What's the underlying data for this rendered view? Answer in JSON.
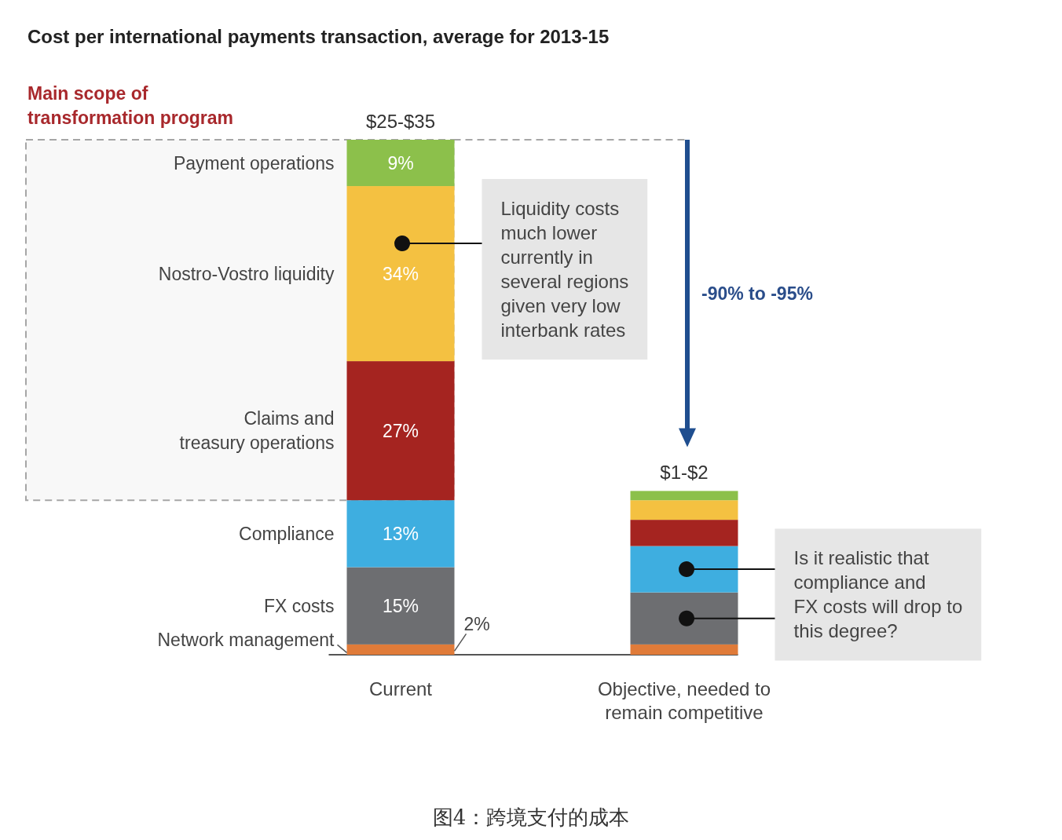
{
  "chart_data": {
    "type": "bar",
    "stacked": true,
    "title": "Cost per international payments transaction, average for 2013-15",
    "categories": [
      "Current",
      "Objective, needed to\nremain competitive"
    ],
    "series": [
      {
        "name": "Network management",
        "color": "#e07b39",
        "values": [
          2,
          2
        ],
        "value_labels": [
          "2%",
          null
        ]
      },
      {
        "name": "FX costs",
        "color": "#6d6e71",
        "values": [
          15,
          10.1
        ],
        "value_labels": [
          "15%",
          null
        ]
      },
      {
        "name": "Compliance",
        "color": "#3eaee0",
        "values": [
          13,
          9
        ],
        "value_labels": [
          "13%",
          null
        ]
      },
      {
        "name": "Claims and\ntreasury operations",
        "color": "#a52420",
        "values": [
          27,
          5.1
        ],
        "value_labels": [
          "27%",
          null
        ]
      },
      {
        "name": "Nostro-Vostro liquidity",
        "color": "#f4c141",
        "values": [
          34,
          3.8
        ],
        "value_labels": [
          "34%",
          null
        ]
      },
      {
        "name": "Payment operations",
        "color": "#8cc04b",
        "values": [
          9,
          1.8
        ],
        "value_labels": [
          "9%",
          null
        ]
      }
    ],
    "totals": [
      "$25-$35",
      "$1-$2"
    ],
    "bands": [
      {
        "axis": "y",
        "from": 30,
        "to": 100,
        "label": "Main scope of\ntransformation program",
        "color": "#a6a6a6"
      }
    ],
    "annotations": [
      "Liquidity costs\nmuch lower\ncurrently in\nseveral regions\ngiven very low\ninterbank rates",
      "-90% to -95%",
      "Is it realistic that\ncompliance and\nFX costs will drop to\nthis degree?",
      "图4：跨境支付的成本"
    ]
  }
}
